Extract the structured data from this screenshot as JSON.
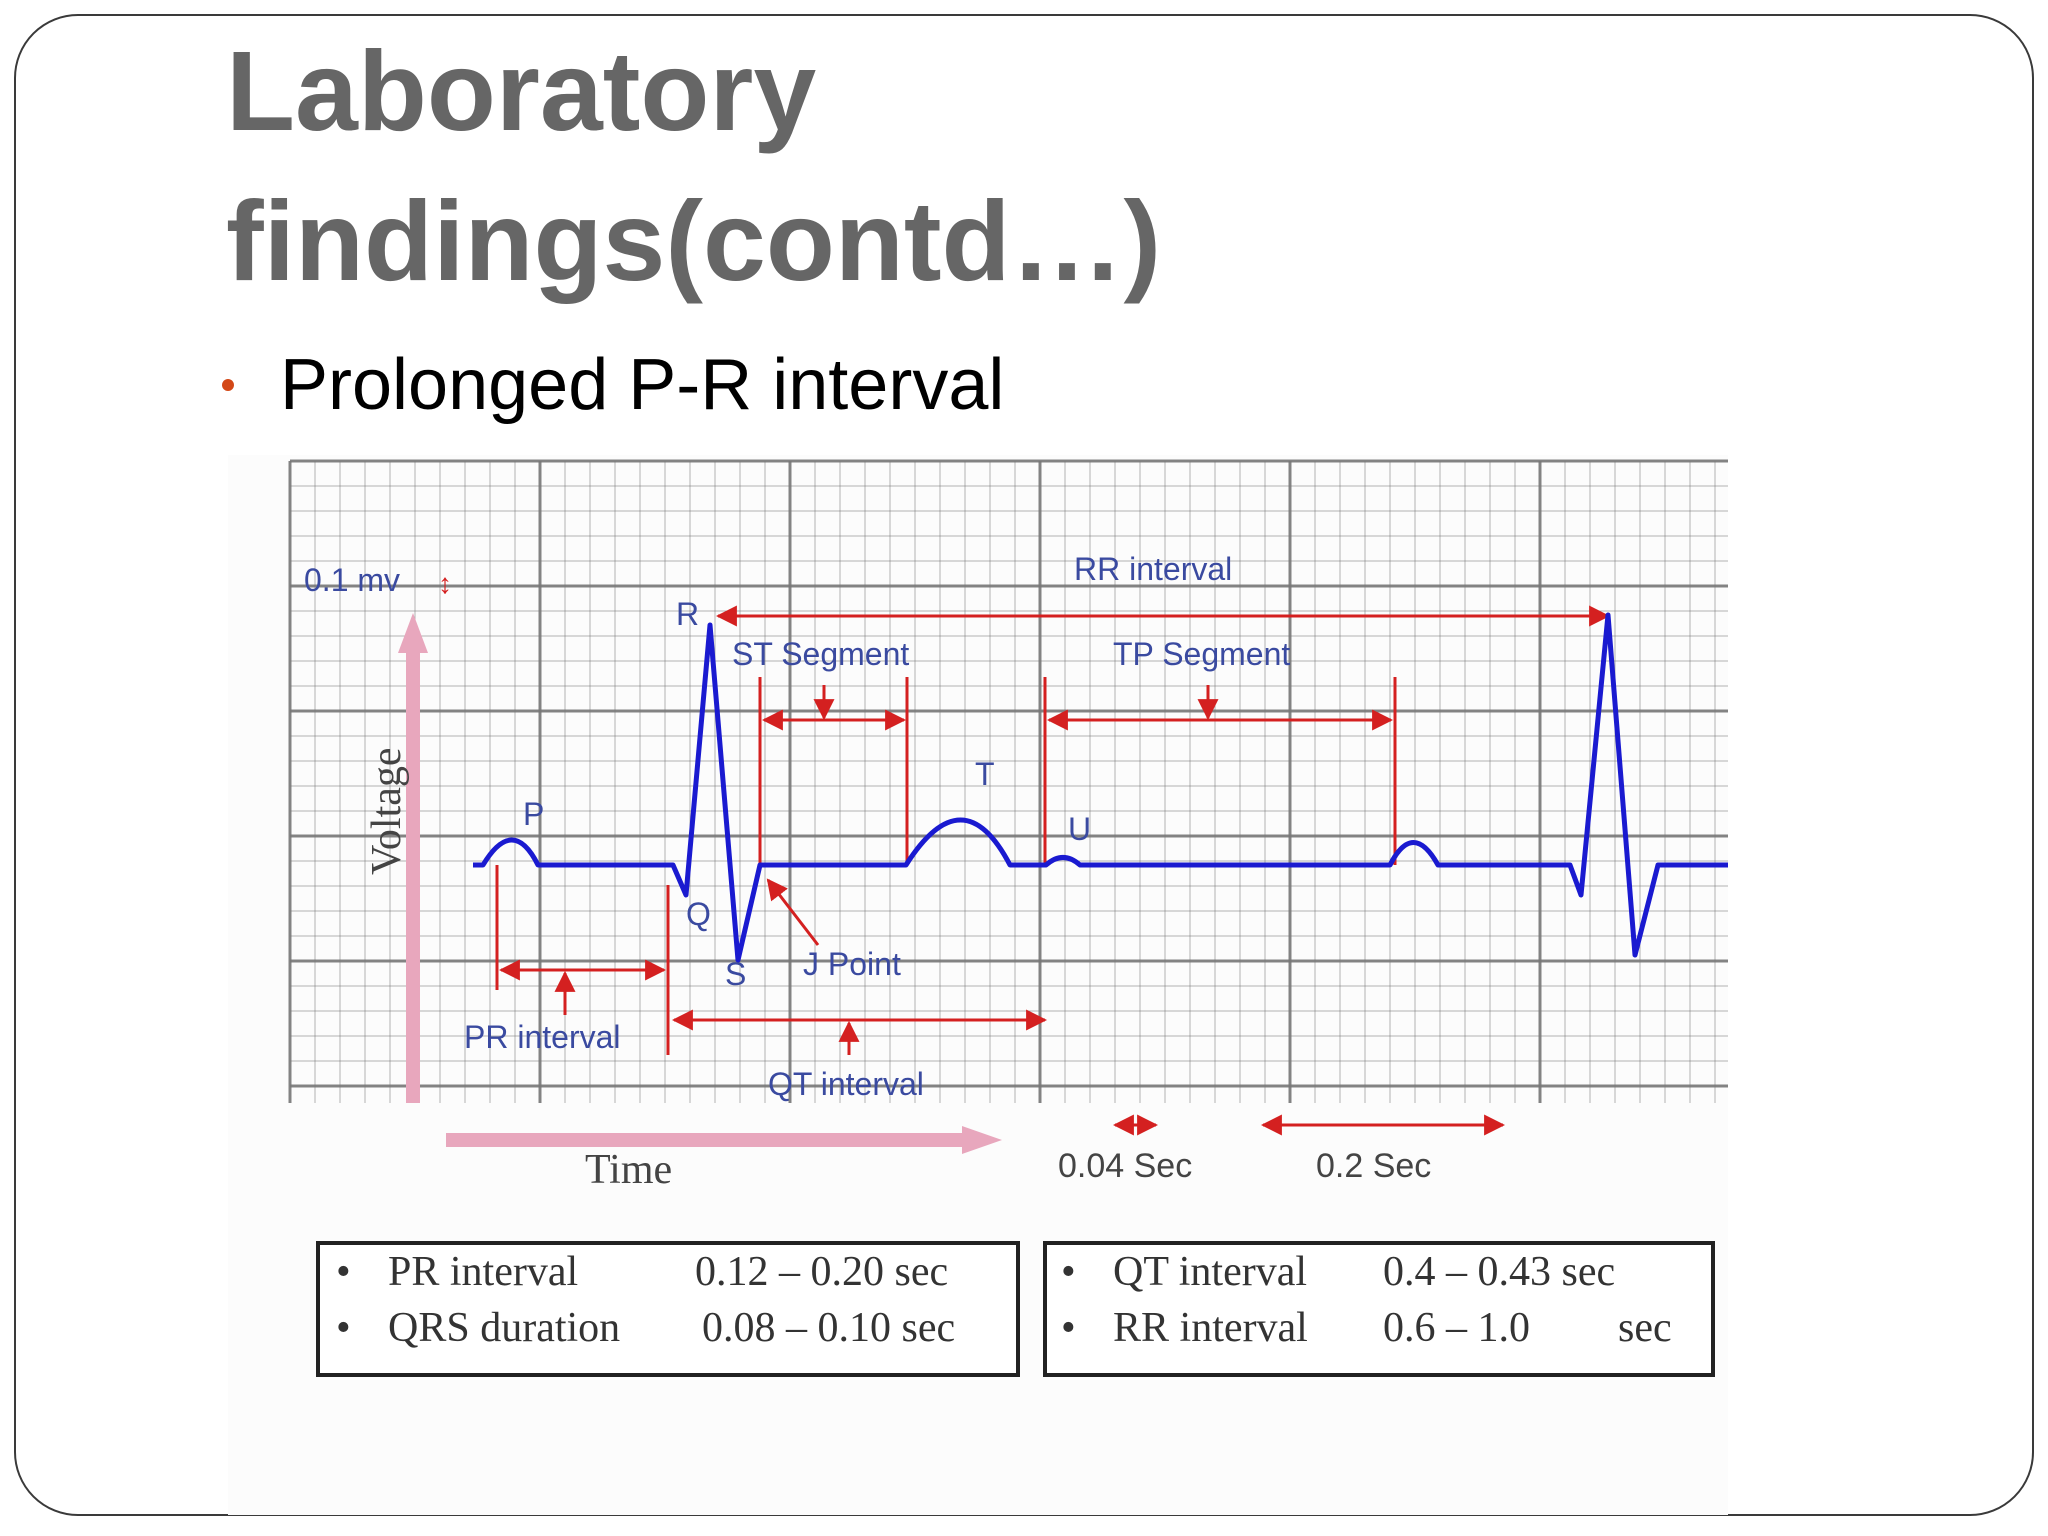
{
  "slide": {
    "title": "Laboratory findings(contd…)",
    "bullets": [
      "Prolonged P-R interval"
    ],
    "accent_color": "#d34817",
    "title_color": "#666666"
  },
  "ecg_figure": {
    "labels": {
      "amplitude": "0.1 mv",
      "voltage": "Voltage",
      "time": "Time",
      "p": "P",
      "q": "Q",
      "r": "R",
      "s": "S",
      "t": "T",
      "u": "U",
      "rr_interval": "RR interval",
      "st_segment": "ST Segment",
      "tp_segment": "TP Segment",
      "j_point": "J Point",
      "pr_interval": "PR interval",
      "qt_interval": "QT interval",
      "small_box": "0.04 Sec",
      "large_box": "0.2 Sec"
    },
    "colors": {
      "trace": "#1a1ad0",
      "marker": "#d42020",
      "grid": "#777777",
      "axis_arrow": "#e8a7bd"
    },
    "reference_left": [
      {
        "name": "PR interval",
        "range": "0.12 – 0.20 sec"
      },
      {
        "name": "QRS duration",
        "range": "0.08 – 0.10 sec"
      }
    ],
    "reference_right": [
      {
        "name": "QT interval",
        "range": "0.4 – 0.43 sec"
      },
      {
        "name": "RR interval",
        "range": "0.6 – 1.0",
        "unit": "sec"
      }
    ]
  }
}
